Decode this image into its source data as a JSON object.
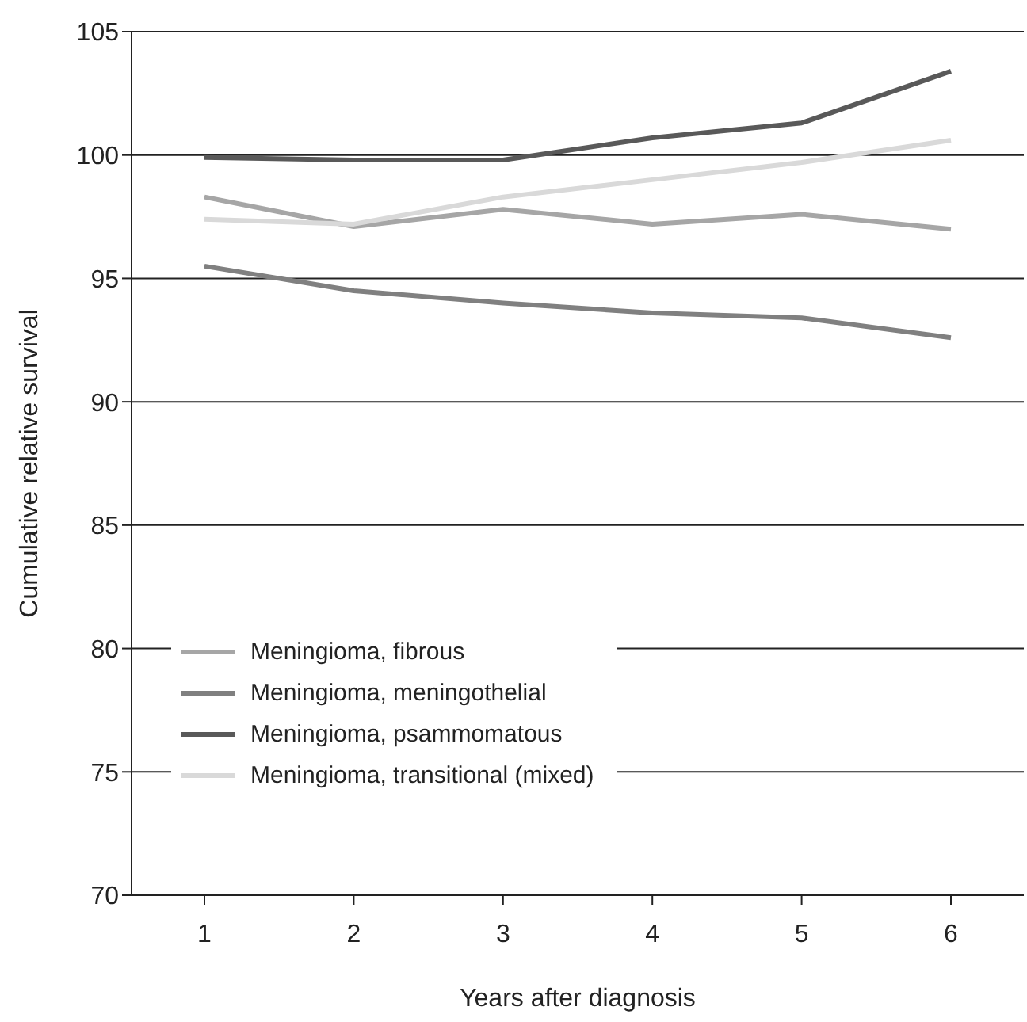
{
  "chart_data": {
    "type": "line",
    "xlabel": "Years after diagnosis",
    "ylabel": "Cumulative relative survival",
    "categories": [
      "1",
      "2",
      "3",
      "4",
      "5",
      "6"
    ],
    "series": [
      {
        "name": "Meningioma, fibrous",
        "color": "#a6a6a6",
        "values": [
          98.3,
          97.1,
          97.8,
          97.2,
          97.6,
          97.0
        ]
      },
      {
        "name": "Meningioma, meningothelial",
        "color": "#808080",
        "values": [
          95.5,
          94.5,
          94.0,
          93.6,
          93.4,
          92.6
        ]
      },
      {
        "name": "Meningioma, psammomatous",
        "color": "#595959",
        "values": [
          99.9,
          99.8,
          99.8,
          100.7,
          101.3,
          103.4
        ]
      },
      {
        "name": "Meningioma, transitional (mixed)",
        "color": "#d9d9d9",
        "values": [
          97.4,
          97.2,
          98.3,
          99.0,
          99.7,
          100.6
        ]
      }
    ],
    "ylim": [
      70,
      105
    ],
    "yticks": [
      70,
      75,
      80,
      85,
      90,
      95,
      100,
      105
    ],
    "grid": "y",
    "legend": "bottom left",
    "marker": "none",
    "line_style": "solid"
  }
}
